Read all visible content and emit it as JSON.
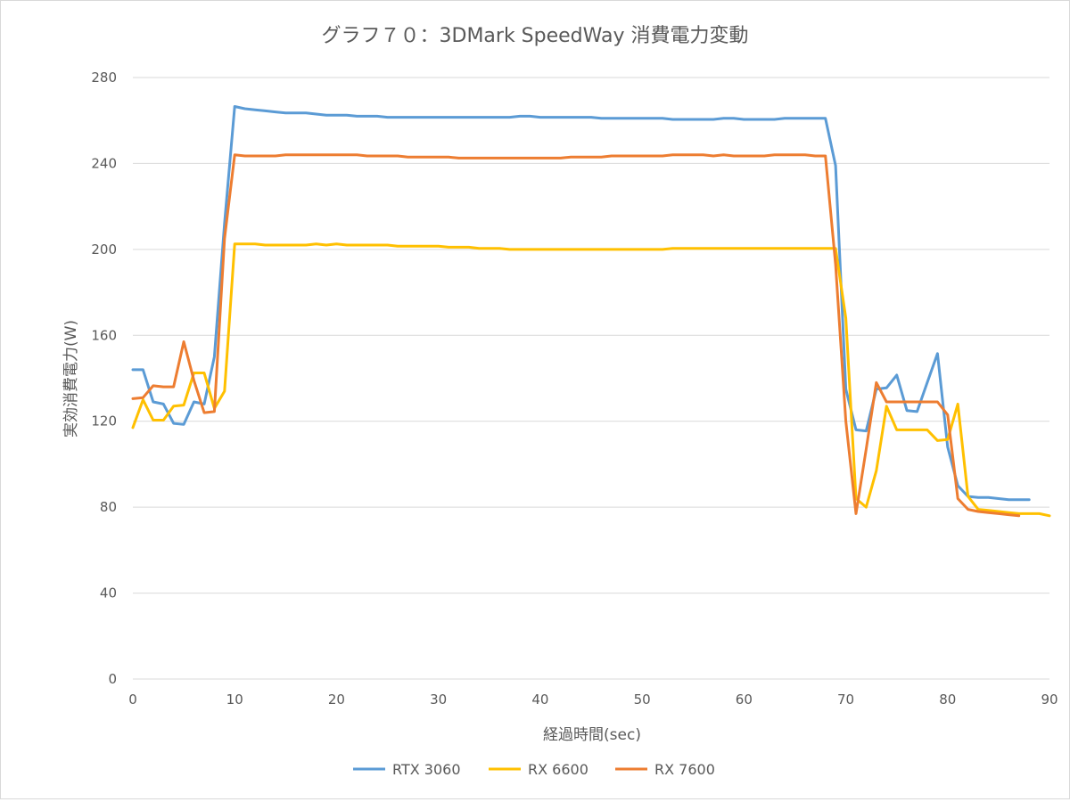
{
  "chart_data": {
    "type": "line",
    "title": "グラフ７０：3DMark SpeedWay 消費電力変動",
    "xlabel": "経過時間(sec)",
    "ylabel": "実効消費電力(W)",
    "xlim": [
      0,
      90
    ],
    "ylim": [
      0,
      280
    ],
    "xticks": [
      0,
      10,
      20,
      30,
      40,
      50,
      60,
      70,
      80,
      90
    ],
    "yticks": [
      0,
      40,
      80,
      120,
      160,
      200,
      240,
      280
    ],
    "grid": "horizontal",
    "legend_position": "bottom",
    "series": [
      {
        "name": "RTX 3060",
        "color": "#5b9bd5",
        "x": [
          0,
          1,
          2,
          3,
          4,
          5,
          6,
          7,
          8,
          9,
          10,
          11,
          12,
          13,
          14,
          15,
          16,
          17,
          18,
          19,
          20,
          21,
          22,
          23,
          24,
          25,
          26,
          27,
          28,
          29,
          30,
          31,
          32,
          33,
          34,
          35,
          36,
          37,
          38,
          39,
          40,
          41,
          42,
          43,
          44,
          45,
          46,
          47,
          48,
          49,
          50,
          51,
          52,
          53,
          54,
          55,
          56,
          57,
          58,
          59,
          60,
          61,
          62,
          63,
          64,
          65,
          66,
          67,
          68,
          69,
          70,
          71,
          72,
          73,
          74,
          75,
          76,
          77,
          78,
          79,
          80,
          81,
          82,
          83,
          84,
          85,
          86,
          87,
          88
        ],
        "y": [
          144,
          144,
          129,
          128,
          119,
          118.5,
          129,
          128,
          150,
          212,
          266.5,
          265.5,
          265,
          264.5,
          264,
          263.5,
          263.5,
          263.5,
          263,
          262.5,
          262.5,
          262.5,
          262,
          262,
          262,
          261.5,
          261.5,
          261.5,
          261.5,
          261.5,
          261.5,
          261.5,
          261.5,
          261.5,
          261.5,
          261.5,
          261.5,
          261.5,
          262,
          262,
          261.5,
          261.5,
          261.5,
          261.5,
          261.5,
          261.5,
          261,
          261,
          261,
          261,
          261,
          261,
          261,
          260.5,
          260.5,
          260.5,
          260.5,
          260.5,
          261,
          261,
          260.5,
          260.5,
          260.5,
          260.5,
          261,
          261,
          261,
          261,
          261,
          239,
          135,
          116,
          115.5,
          135,
          135.5,
          141.5,
          125,
          124.5,
          138,
          151.5,
          108,
          90,
          85,
          84.5,
          84.5,
          84,
          83.5,
          83.5,
          83.5
        ]
      },
      {
        "name": "RX 6600",
        "color": "#ffc000",
        "x": [
          0,
          1,
          2,
          3,
          4,
          5,
          6,
          7,
          8,
          9,
          10,
          11,
          12,
          13,
          14,
          15,
          16,
          17,
          18,
          19,
          20,
          21,
          22,
          23,
          24,
          25,
          26,
          27,
          28,
          29,
          30,
          31,
          32,
          33,
          34,
          35,
          36,
          37,
          38,
          39,
          40,
          41,
          42,
          43,
          44,
          45,
          46,
          47,
          48,
          49,
          50,
          51,
          52,
          53,
          54,
          55,
          56,
          57,
          58,
          59,
          60,
          61,
          62,
          63,
          64,
          65,
          66,
          67,
          68,
          69,
          70,
          71,
          72,
          73,
          74,
          75,
          76,
          77,
          78,
          79,
          80,
          81,
          82,
          83,
          84,
          85,
          86,
          87,
          88,
          89,
          90
        ],
        "y": [
          117,
          130,
          120.5,
          120.5,
          127,
          127.5,
          142.5,
          142.5,
          126,
          134,
          202.5,
          202.5,
          202.5,
          202,
          202,
          202,
          202,
          202,
          202.5,
          202,
          202.5,
          202,
          202,
          202,
          202,
          202,
          201.5,
          201.5,
          201.5,
          201.5,
          201.5,
          201,
          201,
          201,
          200.5,
          200.5,
          200.5,
          200,
          200,
          200,
          200,
          200,
          200,
          200,
          200,
          200,
          200,
          200,
          200,
          200,
          200,
          200,
          200,
          200.5,
          200.5,
          200.5,
          200.5,
          200.5,
          200.5,
          200.5,
          200.5,
          200.5,
          200.5,
          200.5,
          200.5,
          200.5,
          200.5,
          200.5,
          200.5,
          200.5,
          168,
          84,
          80,
          97,
          127,
          116,
          116,
          116,
          116,
          111,
          111.5,
          128,
          85,
          79,
          78.5,
          78,
          77.5,
          77,
          77,
          77,
          76
        ]
      },
      {
        "name": "RX 7600",
        "color": "#ed7d31",
        "x": [
          0,
          1,
          2,
          3,
          4,
          5,
          6,
          7,
          8,
          9,
          10,
          11,
          12,
          13,
          14,
          15,
          16,
          17,
          18,
          19,
          20,
          21,
          22,
          23,
          24,
          25,
          26,
          27,
          28,
          29,
          30,
          31,
          32,
          33,
          34,
          35,
          36,
          37,
          38,
          39,
          40,
          41,
          42,
          43,
          44,
          45,
          46,
          47,
          48,
          49,
          50,
          51,
          52,
          53,
          54,
          55,
          56,
          57,
          58,
          59,
          60,
          61,
          62,
          63,
          64,
          65,
          66,
          67,
          68,
          69,
          70,
          71,
          72,
          73,
          74,
          75,
          76,
          77,
          78,
          79,
          80,
          81,
          82,
          83,
          84,
          85,
          86,
          87
        ],
        "y": [
          130.5,
          131,
          136.5,
          136,
          136,
          157,
          139,
          124,
          124.5,
          205,
          244,
          243.5,
          243.5,
          243.5,
          243.5,
          244,
          244,
          244,
          244,
          244,
          244,
          244,
          244,
          243.5,
          243.5,
          243.5,
          243.5,
          243,
          243,
          243,
          243,
          243,
          242.5,
          242.5,
          242.5,
          242.5,
          242.5,
          242.5,
          242.5,
          242.5,
          242.5,
          242.5,
          242.5,
          243,
          243,
          243,
          243,
          243.5,
          243.5,
          243.5,
          243.5,
          243.5,
          243.5,
          244,
          244,
          244,
          244,
          243.5,
          244,
          243.5,
          243.5,
          243.5,
          243.5,
          244,
          244,
          244,
          244,
          243.5,
          243.5,
          193,
          120,
          77,
          107,
          138,
          129,
          129,
          129,
          129,
          129,
          129,
          123,
          84,
          79,
          78,
          77.5,
          77,
          76.5,
          76
        ]
      }
    ]
  }
}
